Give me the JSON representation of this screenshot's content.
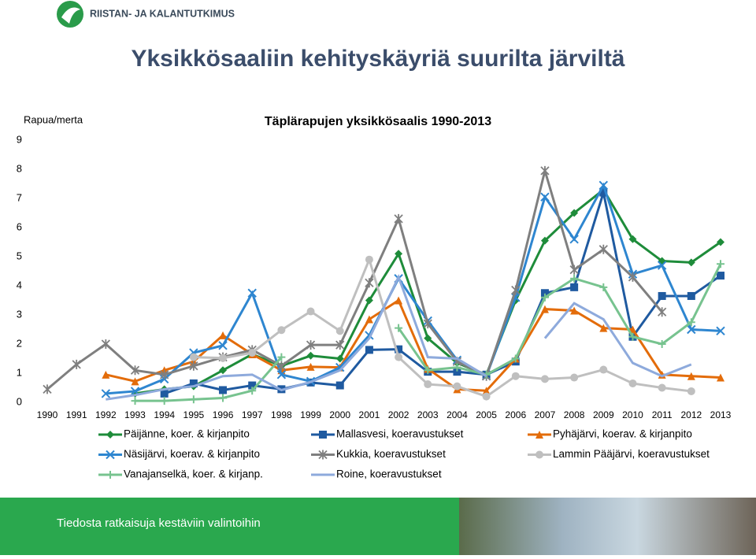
{
  "logo_text": "RIISTAN- JA KALANTUTKIMUS",
  "slide_title": "Yksikkösaaliin kehityskäyriä suurilta järviltä",
  "footer_text": "Tiedosta ratkaisuja kestäviin valintoihin",
  "chart_data": {
    "type": "line",
    "title": "Täplärapujen yksikkösaalis 1990-2013",
    "y_label": "Rapua/merta",
    "categories": [
      "1990",
      "1991",
      "1992",
      "1993",
      "1994",
      "1995",
      "1996",
      "1997",
      "1998",
      "1999",
      "2000",
      "2001",
      "2002",
      "2003",
      "2004",
      "2005",
      "2006",
      "2007",
      "2008",
      "2009",
      "2010",
      "2011",
      "2012",
      "2013"
    ],
    "ylim": [
      0,
      9
    ],
    "yticks": [
      0,
      1,
      2,
      3,
      4,
      5,
      6,
      7,
      8,
      9
    ],
    "series": [
      {
        "name": "Päijänne, koer. & kirjanpito",
        "color": "#1e8c3a",
        "marker": "diamond",
        "values": [
          null,
          null,
          null,
          0.3,
          0.45,
          0.55,
          1.1,
          1.65,
          1.25,
          1.6,
          1.5,
          3.5,
          5.1,
          2.2,
          1.35,
          0.95,
          3.5,
          5.55,
          6.5,
          7.3,
          5.6,
          4.85,
          4.8,
          5.5
        ]
      },
      {
        "name": "Mallasvesi, koeravustukset",
        "color": "#1f5aa0",
        "marker": "square",
        "values": [
          null,
          null,
          null,
          null,
          0.3,
          0.65,
          0.42,
          0.58,
          0.45,
          0.68,
          0.58,
          1.8,
          1.82,
          1.05,
          1.05,
          0.95,
          1.4,
          3.75,
          3.95,
          7.2,
          2.25,
          3.65,
          3.65,
          4.35
        ]
      },
      {
        "name": "Pyhäjärvi, koerav. & kirjanpito",
        "color": "#e36c0a",
        "marker": "triangle",
        "values": [
          null,
          null,
          0.95,
          0.72,
          1.1,
          1.4,
          2.3,
          1.65,
          1.1,
          1.22,
          1.2,
          2.85,
          3.5,
          1.15,
          0.45,
          0.4,
          1.5,
          3.2,
          3.15,
          2.55,
          2.5,
          0.95,
          0.9,
          0.85
        ]
      },
      {
        "name": "Näsijärvi, koerav. & kirjanpito",
        "color": "#2e86d0",
        "marker": "x",
        "values": [
          null,
          null,
          0.3,
          0.38,
          0.8,
          1.7,
          1.95,
          3.75,
          0.95,
          0.72,
          1.2,
          2.3,
          4.25,
          2.8,
          1.45,
          0.9,
          3.6,
          7.05,
          5.6,
          7.45,
          4.4,
          4.7,
          2.5,
          2.45
        ]
      },
      {
        "name": "Kukkia, koeravustukset",
        "color": "#7f7f7f",
        "marker": "star",
        "values": [
          0.45,
          1.3,
          2.0,
          1.1,
          0.95,
          1.25,
          1.55,
          1.8,
          1.25,
          1.97,
          1.97,
          4.1,
          6.3,
          2.7,
          1.4,
          0.9,
          3.85,
          7.95,
          4.55,
          5.25,
          4.3,
          3.1,
          null,
          null
        ]
      },
      {
        "name": "Lammin Pääjärvi, koeravustukset",
        "color": "#bfbfbf",
        "marker": "circle",
        "values": [
          null,
          null,
          null,
          null,
          null,
          1.55,
          1.52,
          1.7,
          2.48,
          3.12,
          2.45,
          4.9,
          1.55,
          0.62,
          0.55,
          0.2,
          0.9,
          0.8,
          0.85,
          1.12,
          0.65,
          0.5,
          0.38,
          null
        ]
      },
      {
        "name": "Vanajanselkä, koer. & kirjanp.",
        "color": "#77c38f",
        "marker": "plus",
        "values": [
          null,
          null,
          null,
          0.05,
          0.05,
          0.1,
          0.15,
          0.4,
          1.55,
          null,
          null,
          null,
          2.55,
          1.1,
          1.2,
          0.95,
          1.5,
          3.6,
          4.25,
          3.95,
          2.25,
          2.0,
          2.75,
          4.75
        ]
      },
      {
        "name": "Roine, koeravustukset",
        "color": "#8eaadc",
        "marker": "none",
        "values": [
          null,
          null,
          0.1,
          0.25,
          0.45,
          0.55,
          0.9,
          0.95,
          0.42,
          0.7,
          1.1,
          2.2,
          4.3,
          1.55,
          1.5,
          0.9,
          null,
          2.2,
          3.4,
          2.85,
          1.35,
          0.9,
          1.3,
          null
        ]
      }
    ]
  }
}
